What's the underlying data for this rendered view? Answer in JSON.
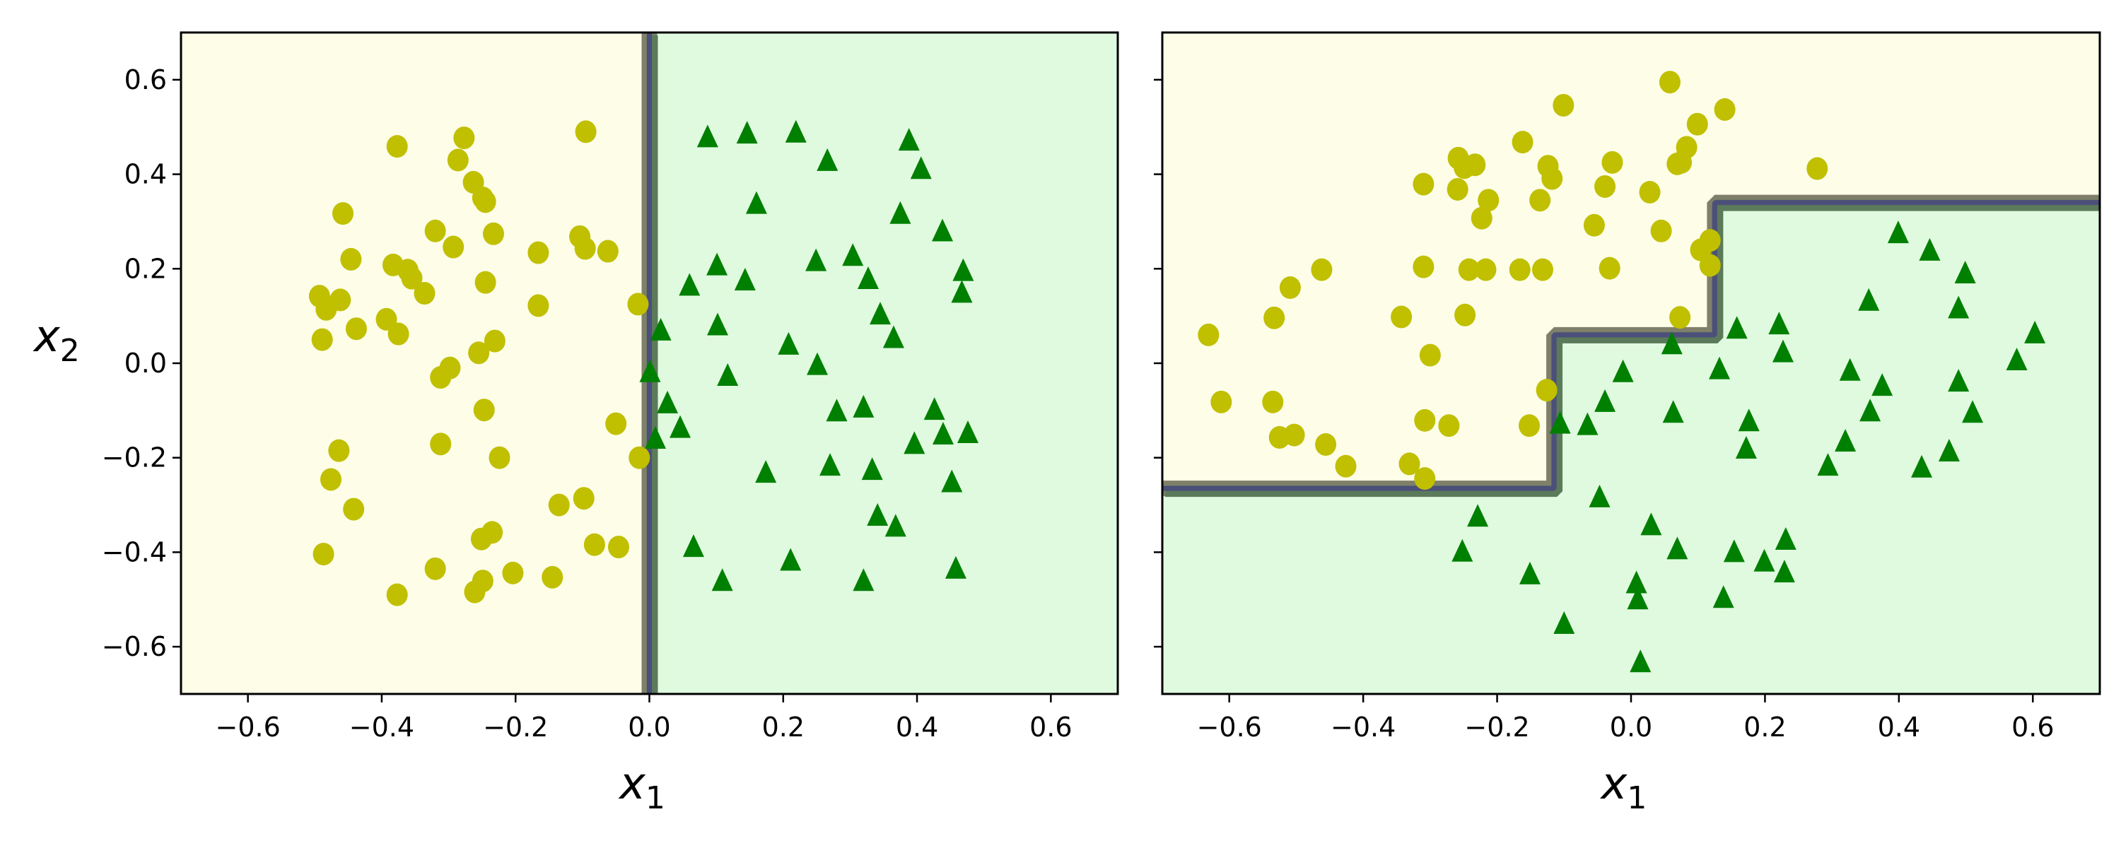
{
  "figure": {
    "colors": {
      "region_class0": "#fdfde8",
      "region_class1": "#e0fae0",
      "class0_marker": "#c0bf00",
      "class1_marker": "#008000",
      "boundary_outer": "#7f7f6a",
      "boundary_mid": "#5a7a5a",
      "boundary_core": "#4b4f7a",
      "axes_edge": "#000000"
    }
  },
  "chart_data": [
    {
      "type": "scatter",
      "title": "",
      "xlabel": "x1",
      "ylabel": "x2",
      "xlim": [
        -0.7,
        0.7
      ],
      "ylim": [
        -0.7,
        0.7
      ],
      "xticks": [
        "−0.6",
        "−0.4",
        "−0.2",
        "0.0",
        "0.2",
        "0.4",
        "0.6"
      ],
      "yticks": [
        "−0.6",
        "−0.4",
        "−0.2",
        "0.0",
        "0.2",
        "0.4",
        "0.6"
      ],
      "grid": false,
      "legend": null,
      "decision_boundary": {
        "kind": "vertical-line",
        "points": [
          [
            0.0,
            -0.7
          ],
          [
            0.0,
            0.7
          ]
        ],
        "left_region": "class0",
        "right_region": "class1"
      },
      "series": [
        {
          "name": "class 0 (yellow circles)",
          "marker": "circle",
          "points": [
            [
              -0.377,
              0.459
            ],
            [
              -0.095,
              0.49
            ],
            [
              -0.277,
              0.477
            ],
            [
              -0.286,
              0.43
            ],
            [
              -0.263,
              0.383
            ],
            [
              -0.249,
              0.35
            ],
            [
              -0.245,
              0.342
            ],
            [
              -0.458,
              0.317
            ],
            [
              -0.32,
              0.28
            ],
            [
              -0.233,
              0.274
            ],
            [
              -0.293,
              0.246
            ],
            [
              -0.104,
              0.268
            ],
            [
              -0.096,
              0.243
            ],
            [
              -0.062,
              0.237
            ],
            [
              -0.166,
              0.234
            ],
            [
              -0.446,
              0.22
            ],
            [
              -0.383,
              0.208
            ],
            [
              -0.361,
              0.197
            ],
            [
              -0.355,
              0.18
            ],
            [
              -0.245,
              0.171
            ],
            [
              -0.336,
              0.148
            ],
            [
              -0.493,
              0.142
            ],
            [
              -0.462,
              0.134
            ],
            [
              -0.483,
              0.114
            ],
            [
              -0.166,
              0.122
            ],
            [
              -0.017,
              0.125
            ],
            [
              -0.393,
              0.093
            ],
            [
              -0.438,
              0.073
            ],
            [
              -0.375,
              0.062
            ],
            [
              -0.489,
              0.05
            ],
            [
              -0.231,
              0.047
            ],
            [
              -0.255,
              0.022
            ],
            [
              -0.298,
              -0.01
            ],
            [
              -0.312,
              -0.03
            ],
            [
              -0.247,
              -0.099
            ],
            [
              -0.05,
              -0.128
            ],
            [
              -0.312,
              -0.171
            ],
            [
              -0.464,
              -0.185
            ],
            [
              -0.224,
              -0.2
            ],
            [
              -0.015,
              -0.2
            ],
            [
              -0.476,
              -0.246
            ],
            [
              -0.442,
              -0.309
            ],
            [
              -0.135,
              -0.3
            ],
            [
              -0.098,
              -0.286
            ],
            [
              -0.235,
              -0.358
            ],
            [
              -0.251,
              -0.372
            ],
            [
              -0.082,
              -0.384
            ],
            [
              -0.046,
              -0.389
            ],
            [
              -0.487,
              -0.404
            ],
            [
              -0.32,
              -0.435
            ],
            [
              -0.204,
              -0.444
            ],
            [
              -0.145,
              -0.453
            ],
            [
              -0.249,
              -0.461
            ],
            [
              -0.261,
              -0.484
            ],
            [
              -0.377,
              -0.49
            ]
          ]
        },
        {
          "name": "class 1 (green triangles)",
          "marker": "triangle",
          "points": [
            [
              0.087,
              0.481
            ],
            [
              0.146,
              0.489
            ],
            [
              0.219,
              0.491
            ],
            [
              0.266,
              0.431
            ],
            [
              0.388,
              0.474
            ],
            [
              0.406,
              0.414
            ],
            [
              0.16,
              0.34
            ],
            [
              0.375,
              0.319
            ],
            [
              0.438,
              0.282
            ],
            [
              0.469,
              0.198
            ],
            [
              0.304,
              0.23
            ],
            [
              0.249,
              0.219
            ],
            [
              0.101,
              0.21
            ],
            [
              0.327,
              0.181
            ],
            [
              0.143,
              0.178
            ],
            [
              0.06,
              0.167
            ],
            [
              0.467,
              0.152
            ],
            [
              0.345,
              0.106
            ],
            [
              0.017,
              0.072
            ],
            [
              0.102,
              0.083
            ],
            [
              0.365,
              0.056
            ],
            [
              0.208,
              0.042
            ],
            [
              0.251,
              -0.001
            ],
            [
              0.001,
              -0.016
            ],
            [
              0.117,
              -0.024
            ],
            [
              0.28,
              -0.099
            ],
            [
              0.32,
              -0.091
            ],
            [
              0.426,
              -0.096
            ],
            [
              0.027,
              -0.082
            ],
            [
              0.046,
              -0.134
            ],
            [
              0.009,
              -0.157
            ],
            [
              0.396,
              -0.168
            ],
            [
              0.476,
              -0.145
            ],
            [
              0.439,
              -0.148
            ],
            [
              0.174,
              -0.229
            ],
            [
              0.27,
              -0.214
            ],
            [
              0.333,
              -0.223
            ],
            [
              0.452,
              -0.249
            ],
            [
              0.341,
              -0.32
            ],
            [
              0.368,
              -0.343
            ],
            [
              0.066,
              -0.386
            ],
            [
              0.211,
              -0.415
            ],
            [
              0.109,
              -0.458
            ],
            [
              0.32,
              -0.458
            ],
            [
              0.458,
              -0.432
            ]
          ]
        }
      ]
    },
    {
      "type": "scatter",
      "title": "",
      "xlabel": "x1",
      "ylabel": "",
      "xlim": [
        -0.7,
        0.7
      ],
      "ylim": [
        -0.7,
        0.7
      ],
      "xticks": [
        "−0.6",
        "−0.4",
        "−0.2",
        "0.0",
        "0.2",
        "0.4",
        "0.6"
      ],
      "yticks": [],
      "grid": false,
      "legend": null,
      "decision_boundary": {
        "kind": "staircase",
        "points": [
          [
            -0.7,
            -0.265
          ],
          [
            -0.115,
            -0.265
          ],
          [
            -0.115,
            0.06
          ],
          [
            0.125,
            0.06
          ],
          [
            0.125,
            0.34
          ],
          [
            0.7,
            0.34
          ]
        ],
        "above_region": "class0",
        "below_region": "class1"
      },
      "series": [
        {
          "name": "class 0 (yellow circles)",
          "marker": "circle",
          "points": [
            [
              -0.631,
              0.06
            ],
            [
              -0.612,
              -0.082
            ],
            [
              -0.533,
              0.096
            ],
            [
              -0.509,
              0.16
            ],
            [
              -0.462,
              0.198
            ],
            [
              -0.535,
              -0.082
            ],
            [
              -0.525,
              -0.157
            ],
            [
              -0.503,
              -0.152
            ],
            [
              -0.456,
              -0.172
            ],
            [
              -0.426,
              -0.218
            ],
            [
              -0.31,
              0.204
            ],
            [
              -0.343,
              0.098
            ],
            [
              -0.3,
              0.017
            ],
            [
              -0.308,
              -0.121
            ],
            [
              -0.331,
              -0.213
            ],
            [
              -0.308,
              -0.244
            ],
            [
              -0.272,
              -0.132
            ],
            [
              -0.248,
              0.102
            ],
            [
              -0.242,
              0.198
            ],
            [
              -0.217,
              0.198
            ],
            [
              -0.166,
              0.198
            ],
            [
              -0.132,
              0.198
            ],
            [
              -0.032,
              0.201
            ],
            [
              -0.152,
              -0.132
            ],
            [
              -0.126,
              -0.057
            ],
            [
              -0.31,
              0.379
            ],
            [
              -0.259,
              0.368
            ],
            [
              -0.249,
              0.414
            ],
            [
              -0.233,
              0.42
            ],
            [
              -0.213,
              0.345
            ],
            [
              -0.223,
              0.307
            ],
            [
              -0.258,
              0.434
            ],
            [
              -0.162,
              0.468
            ],
            [
              -0.101,
              0.546
            ],
            [
              -0.124,
              0.417
            ],
            [
              -0.118,
              0.391
            ],
            [
              -0.136,
              0.345
            ],
            [
              -0.039,
              0.374
            ],
            [
              -0.028,
              0.425
            ],
            [
              -0.055,
              0.292
            ],
            [
              0.028,
              0.362
            ],
            [
              0.058,
              0.595
            ],
            [
              0.099,
              0.506
            ],
            [
              0.14,
              0.537
            ],
            [
              0.083,
              0.457
            ],
            [
              0.069,
              0.422
            ],
            [
              0.075,
              0.425
            ],
            [
              0.045,
              0.28
            ],
            [
              0.118,
              0.26
            ],
            [
              0.104,
              0.24
            ],
            [
              0.118,
              0.207
            ],
            [
              0.278,
              0.412
            ],
            [
              0.073,
              0.097
            ]
          ]
        },
        {
          "name": "class 1 (green triangles)",
          "marker": "triangle",
          "points": [
            [
              0.399,
              0.278
            ],
            [
              0.446,
              0.241
            ],
            [
              0.499,
              0.193
            ],
            [
              0.355,
              0.135
            ],
            [
              0.489,
              0.119
            ],
            [
              0.603,
              0.066
            ],
            [
              0.576,
              0.009
            ],
            [
              0.158,
              0.076
            ],
            [
              0.221,
              0.085
            ],
            [
              0.227,
              0.026
            ],
            [
              0.061,
              0.043
            ],
            [
              0.327,
              -0.013
            ],
            [
              0.375,
              -0.045
            ],
            [
              0.489,
              -0.036
            ],
            [
              0.51,
              -0.102
            ],
            [
              0.357,
              -0.099
            ],
            [
              0.132,
              -0.01
            ],
            [
              -0.012,
              -0.016
            ],
            [
              -0.039,
              -0.079
            ],
            [
              -0.106,
              -0.125
            ],
            [
              -0.065,
              -0.128
            ],
            [
              0.063,
              -0.102
            ],
            [
              0.176,
              -0.12
            ],
            [
              0.172,
              -0.178
            ],
            [
              0.32,
              -0.163
            ],
            [
              0.294,
              -0.214
            ],
            [
              0.475,
              -0.184
            ],
            [
              0.434,
              -0.218
            ],
            [
              -0.047,
              -0.281
            ],
            [
              -0.229,
              -0.322
            ],
            [
              0.03,
              -0.34
            ],
            [
              -0.252,
              -0.396
            ],
            [
              0.069,
              -0.391
            ],
            [
              0.154,
              -0.397
            ],
            [
              0.231,
              -0.371
            ],
            [
              0.199,
              -0.417
            ],
            [
              0.229,
              -0.44
            ],
            [
              -0.151,
              -0.444
            ],
            [
              0.008,
              -0.463
            ],
            [
              0.01,
              -0.497
            ],
            [
              0.138,
              -0.494
            ],
            [
              -0.1,
              -0.549
            ],
            [
              0.014,
              -0.63
            ]
          ]
        }
      ]
    }
  ]
}
